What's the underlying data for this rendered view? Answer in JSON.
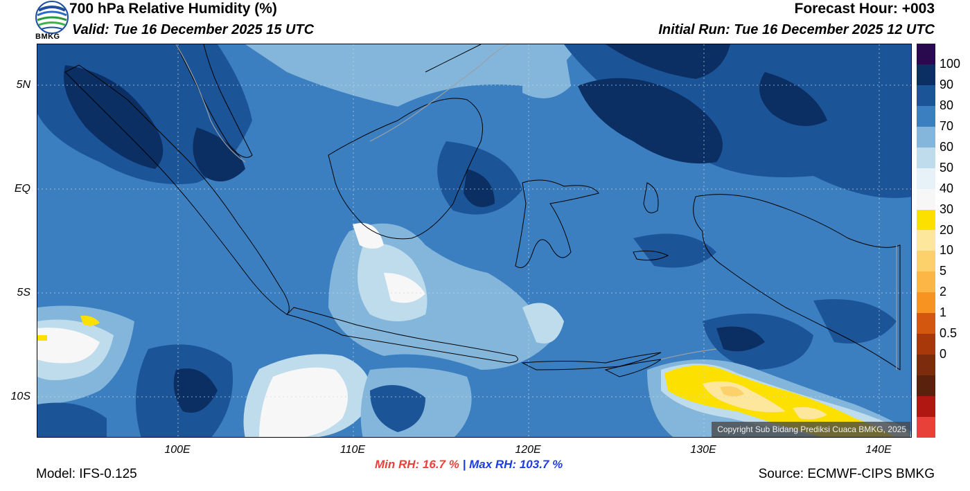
{
  "header": {
    "title": "700 hPa Relative Humidity (%)",
    "valid": "Valid: Tue 16 December 2025 15 UTC",
    "forecast_hour": "Forecast Hour: +003",
    "initial_run": "Initial Run: Tue 16 December 2025 12 UTC",
    "logo_text": "BMKG"
  },
  "map": {
    "region": "Indonesian Maritime Continent",
    "lat_labels": [
      "5N",
      "EQ",
      "5S",
      "10S"
    ],
    "lon_labels": [
      "100E",
      "110E",
      "120E",
      "130E",
      "140E"
    ],
    "copyright": "Copyright Sub Bidang Prediksi Cuaca BMKG, 2025"
  },
  "colorbar": {
    "labels": [
      "100",
      "90",
      "80",
      "70",
      "60",
      "50",
      "40",
      "30",
      "20",
      "10",
      "5",
      "2",
      "1",
      "0.5",
      "0"
    ],
    "colors": [
      "#2a0a4e",
      "#0b2f63",
      "#1c5498",
      "#3b7fc0",
      "#83b6da",
      "#bfdcec",
      "#e6f1f8",
      "#f7f7f7",
      "#fbe000",
      "#fde79c",
      "#fcd06a",
      "#fbb645",
      "#f79320",
      "#d45710",
      "#a8380a",
      "#7c2c0d",
      "#5a220c",
      "#b01712",
      "#e7413a"
    ]
  },
  "stats": {
    "min_rh": "Min RH:  16.7 %",
    "separator": "|",
    "max_rh": "Max RH: 103.7 %"
  },
  "footer": {
    "model": "Model: IFS-0.125",
    "source": "Source: ECMWF-CIPS BMKG"
  }
}
